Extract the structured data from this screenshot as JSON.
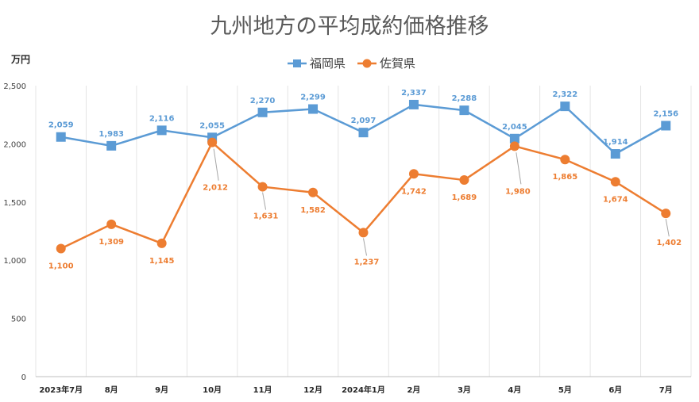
{
  "chart_data": {
    "type": "line",
    "title": "九州地方の平均成約価格推移",
    "ylabel": "万円",
    "ylim": [
      0,
      2500
    ],
    "yticks": [
      0,
      500,
      1000,
      1500,
      2000,
      2500
    ],
    "ytick_labels": [
      "0",
      "500",
      "1,000",
      "1,500",
      "2,000",
      "2,500"
    ],
    "categories": [
      "2023年7月",
      "8月",
      "9月",
      "10月",
      "11月",
      "12月",
      "2024年1月",
      "2月",
      "3月",
      "4月",
      "5月",
      "6月",
      "7月"
    ],
    "legend_position": "top",
    "grid": "vertical",
    "series": [
      {
        "name": "福岡県",
        "color": "#5B9BD5",
        "marker": "square",
        "values": [
          2059,
          1983,
          2116,
          2055,
          2270,
          2299,
          2097,
          2337,
          2288,
          2045,
          2322,
          1914,
          2156
        ],
        "labels": [
          "2,059",
          "1,983",
          "2,116",
          "2,055",
          "2,270",
          "2,299",
          "2,097",
          "2,337",
          "2,288",
          "2,045",
          "2,322",
          "1,914",
          "2,156"
        ]
      },
      {
        "name": "佐賀県",
        "color": "#ED7D31",
        "marker": "circle",
        "values": [
          1100,
          1309,
          1145,
          2012,
          1631,
          1582,
          1237,
          1742,
          1689,
          1980,
          1865,
          1674,
          1402
        ],
        "labels": [
          "1,100",
          "1,309",
          "1,145",
          "2,012",
          "1,631",
          "1,582",
          "1,237",
          "1,742",
          "1,689",
          "1,980",
          "1,865",
          "1,674",
          "1,402"
        ]
      }
    ]
  }
}
